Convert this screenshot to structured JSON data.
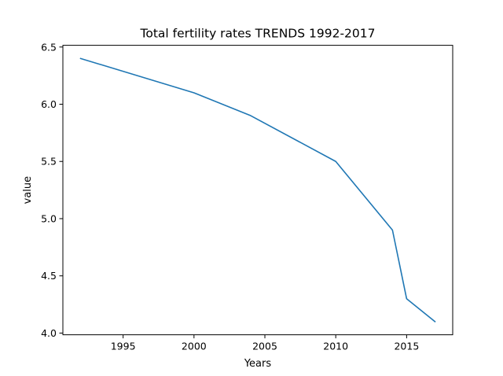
{
  "chart_data": {
    "type": "line",
    "title": "Total fertility rates TRENDS 1992-2017",
    "xlabel": "Years",
    "ylabel": "value",
    "x": [
      1992,
      2000,
      2004,
      2010,
      2014,
      2015,
      2017
    ],
    "series": [
      {
        "values": [
          6.4,
          6.1,
          5.9,
          5.5,
          4.9,
          4.3,
          4.1
        ]
      }
    ],
    "xlim": [
      1990.75,
      2018.25
    ],
    "ylim": [
      3.985,
      6.515
    ],
    "xticks": [
      1995,
      2000,
      2005,
      2010,
      2015
    ],
    "xtick_labels": [
      "1995",
      "2000",
      "2005",
      "2010",
      "2015"
    ],
    "yticks": [
      4.0,
      4.5,
      5.0,
      5.5,
      6.0,
      6.5
    ],
    "ytick_labels": [
      "4.0",
      "4.5",
      "5.0",
      "5.5",
      "6.0",
      "6.5"
    ],
    "grid": false,
    "colors": {
      "line": "#1f77b4",
      "axes": "#000000",
      "background": "#ffffff"
    }
  }
}
